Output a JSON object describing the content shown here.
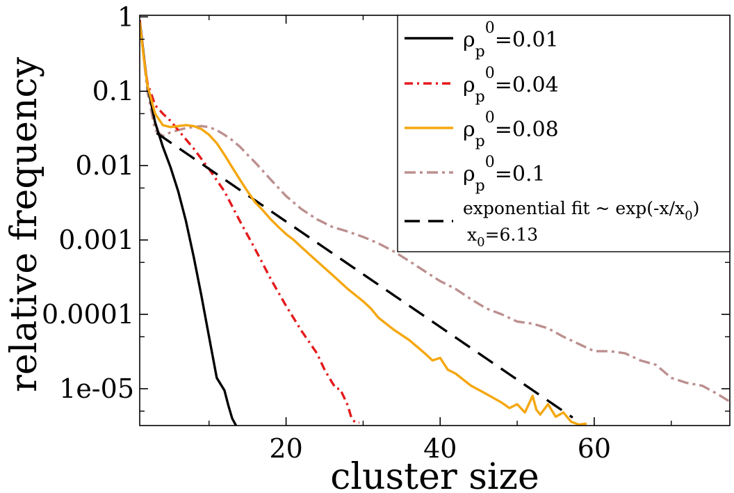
{
  "chart_data": {
    "type": "line",
    "title": "",
    "xlabel": "cluster size",
    "ylabel": "relative frequency",
    "xscale": "linear",
    "yscale": "log",
    "xlim": [
      1,
      77.6
    ],
    "ylim": [
      3.2e-06,
      1.05
    ],
    "xticks": [
      20,
      40,
      60
    ],
    "xtick_labels": [
      "20",
      "40",
      "60"
    ],
    "yticks": [
      1,
      0.1,
      0.01,
      0.001,
      0.0001,
      1e-05
    ],
    "ytick_labels": [
      "1",
      "0.1",
      "0.01",
      "0.001",
      "0.0001",
      "1e-05"
    ],
    "legend_position": "top-right",
    "series": [
      {
        "name": "ρp0=0.01",
        "symbol": "ρ",
        "sub": "p",
        "sup": "0",
        "value_text": "=0.01",
        "color": "#000000",
        "dash": "",
        "x": [
          1,
          1.5,
          2,
          3,
          4,
          5,
          6,
          7,
          8,
          9,
          10,
          11,
          12,
          12.5,
          13,
          13.5
        ],
        "y": [
          0.9,
          0.32,
          0.12,
          0.038,
          0.018,
          0.0095,
          0.0045,
          0.0018,
          0.0006,
          0.00018,
          5e-05,
          1.4e-05,
          9.5e-06,
          6e-06,
          4e-06,
          3.2e-06
        ]
      },
      {
        "name": "ρp0=0.04",
        "symbol": "ρ",
        "sub": "p",
        "sup": "0",
        "value_text": "=0.04",
        "color": "#e41a1c",
        "dash": "12 6 3 6",
        "x": [
          1,
          1.5,
          2,
          3,
          4,
          5,
          6,
          8,
          10,
          12,
          14,
          16,
          18,
          20,
          22,
          24,
          25,
          26,
          26.5,
          27,
          28,
          28.5,
          29,
          29.5
        ],
        "y": [
          0.9,
          0.3,
          0.13,
          0.065,
          0.05,
          0.04,
          0.03,
          0.017,
          0.009,
          0.0045,
          0.0018,
          0.00075,
          0.0003,
          0.00013,
          6e-05,
          3e-05,
          1.8e-05,
          1.2e-05,
          1e-05,
          1e-05,
          6e-06,
          4e-06,
          3.5e-06,
          3.5e-06
        ]
      },
      {
        "name": "ρp0=0.08",
        "symbol": "ρ",
        "sub": "p",
        "sup": "0",
        "value_text": "=0.08",
        "color": "#f5a70f",
        "dash": "",
        "x": [
          1,
          1.5,
          2,
          3,
          4,
          5,
          6,
          7,
          8,
          9,
          10,
          11,
          12,
          13,
          14,
          15,
          16,
          17,
          18,
          19,
          20,
          21,
          22,
          24,
          26,
          28,
          30,
          31,
          32,
          34,
          36,
          38,
          39,
          40,
          41,
          42,
          44,
          46,
          48,
          49,
          50,
          51,
          52,
          52.5,
          53,
          54,
          55,
          56,
          57,
          58,
          59
        ],
        "y": [
          0.85,
          0.3,
          0.12,
          0.05,
          0.035,
          0.033,
          0.034,
          0.035,
          0.034,
          0.031,
          0.026,
          0.02,
          0.014,
          0.0095,
          0.0065,
          0.0045,
          0.0032,
          0.0025,
          0.0019,
          0.0015,
          0.0012,
          0.001,
          0.0008,
          0.00052,
          0.00034,
          0.00022,
          0.00015,
          0.00012,
          9e-05,
          6.2e-05,
          4.5e-05,
          3e-05,
          2.4e-05,
          2.6e-05,
          1.8e-05,
          1.6e-05,
          1.1e-05,
          8.5e-06,
          6.5e-06,
          5.5e-06,
          6.2e-06,
          4.8e-06,
          8e-06,
          5.2e-06,
          4.5e-06,
          6.2e-06,
          4.2e-06,
          4.8e-06,
          3.6e-06,
          3.3e-06,
          3.4e-06
        ]
      },
      {
        "name": "ρp0=0.1",
        "symbol": "ρ",
        "sub": "p",
        "sup": "0",
        "value_text": "=0.1",
        "color": "#bc8f8f",
        "dash": "16 6 4 6",
        "x": [
          1,
          1.5,
          2,
          3,
          4,
          5,
          6,
          7,
          8,
          9,
          10,
          11,
          12,
          13,
          14,
          15,
          16,
          18,
          20,
          22,
          24,
          26,
          28,
          30,
          32,
          34,
          36,
          38,
          40,
          42,
          44,
          46,
          48,
          50,
          52,
          54,
          56,
          58,
          60,
          62,
          64,
          66,
          68,
          70,
          72,
          74,
          76,
          77.5
        ],
        "y": [
          0.9,
          0.3,
          0.1,
          0.03,
          0.025,
          0.028,
          0.03,
          0.032,
          0.033,
          0.034,
          0.033,
          0.03,
          0.026,
          0.022,
          0.018,
          0.014,
          0.011,
          0.0065,
          0.0039,
          0.0026,
          0.0019,
          0.0015,
          0.0013,
          0.0011,
          0.0009,
          0.0007,
          0.00052,
          0.00038,
          0.00028,
          0.00022,
          0.00016,
          0.00012,
          0.0001,
          8e-05,
          7.5e-05,
          6.5e-05,
          5e-05,
          4e-05,
          3.2e-05,
          3.2e-05,
          3e-05,
          2.4e-05,
          2.1e-05,
          1.4e-05,
          1.2e-05,
          1.1e-05,
          8.5e-06,
          6.8e-06
        ]
      }
    ],
    "fit": {
      "name": "exponential fit ~ exp(-x/x0), x0=6.13",
      "text_main": "exponential fit ~ exp(-x/x",
      "text_main_sub": "0",
      "text_main_end": ")",
      "text_second_prefix": "x",
      "text_second_sub": "0",
      "text_second_end": "=6.13",
      "color": "#000000",
      "dash": "26 14",
      "x0": 6.13,
      "x_range": [
        3.2,
        57.6
      ],
      "anchor_x": 32,
      "anchor_y": 0.00025
    }
  }
}
